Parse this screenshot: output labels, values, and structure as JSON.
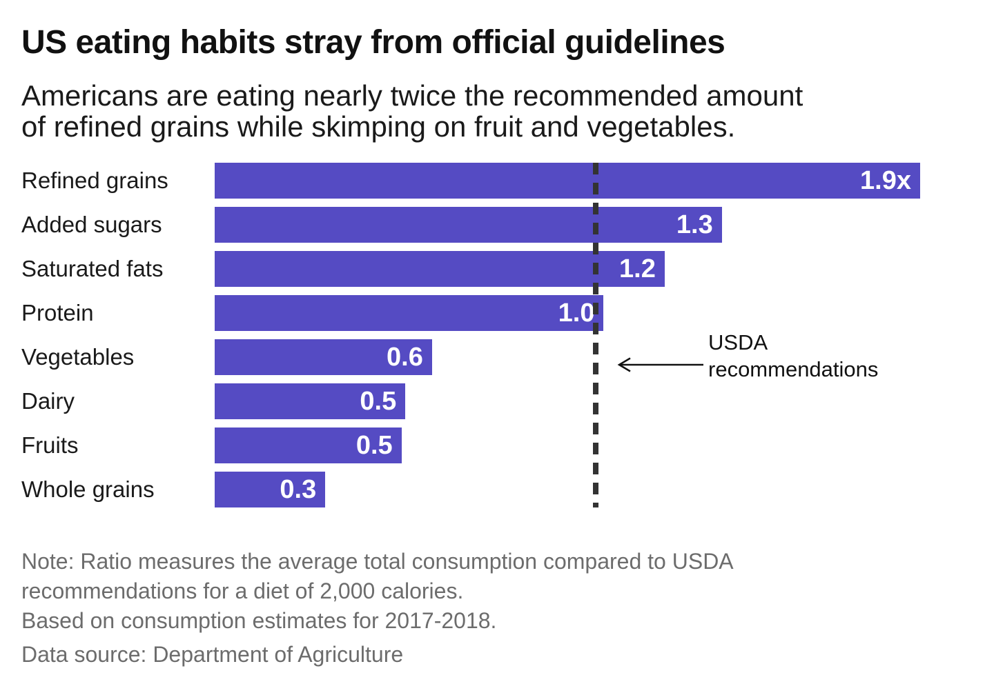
{
  "header": {
    "title": "US eating habits stray from official guidelines",
    "subtitle_lines": [
      "Americans are eating nearly twice the recommended amount",
      "of refined grains while skimping on fruit and vegetables."
    ]
  },
  "chart_data": {
    "type": "bar",
    "orientation": "horizontal",
    "title": "US eating habits stray from official guidelines",
    "subtitle": "Americans are eating nearly twice the recommended amount of refined grains while skimping on fruit and vegetables.",
    "categories": [
      "Refined grains",
      "Added sugars",
      "Saturated fats",
      "Protein",
      "Vegetables",
      "Dairy",
      "Fruits",
      "Whole grains"
    ],
    "value_labels": [
      "1.9x",
      "1.3",
      "1.2",
      "1.0",
      "0.6",
      "0.5",
      "0.5",
      "0.3"
    ],
    "values": [
      1.85,
      1.33,
      1.18,
      1.02,
      0.57,
      0.5,
      0.49,
      0.29
    ],
    "unit": "ratio of consumption to USDA recommendation",
    "xlim": [
      0,
      1.85
    ],
    "grid": false,
    "legend": "none",
    "reference_line": {
      "value": 1.0,
      "style": "dashed-vertical",
      "label_lines": [
        "USDA",
        "recommendations"
      ]
    }
  },
  "notes": {
    "lines": [
      "Note: Ratio measures the average total consumption compared to USDA",
      "recommendations for a diet of 2,000 calories.",
      "Based on consumption estimates for 2017-2018."
    ],
    "source": "Data source: Department of Agriculture"
  },
  "colors": {
    "bar": "#554BC3",
    "value_text": "#ffffff",
    "reference_line": "#333333",
    "title_text": "#111111",
    "note_text": "#6c6c6c",
    "background": "#ffffff"
  }
}
